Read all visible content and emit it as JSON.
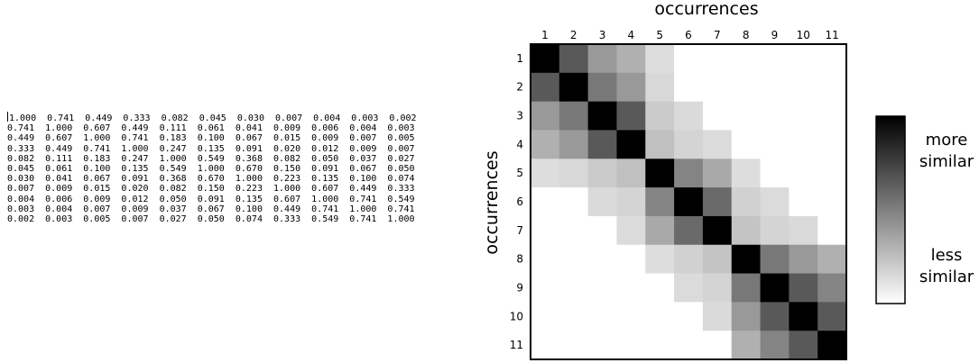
{
  "matrix_rows": [
    "1.000  0.741  0.449  0.333  0.082  0.045  0.030  0.007  0.004  0.003  0.002",
    "0.741  1.000  0.607  0.449  0.111  0.061  0.041  0.009  0.006  0.004  0.003",
    "0.449  0.607  1.000  0.741  0.183  0.100  0.067  0.015  0.009  0.007  0.005",
    "0.333  0.449  0.741  1.000  0.247  0.135  0.091  0.020  0.012  0.009  0.007",
    "0.082  0.111  0.183  0.247  1.000  0.549  0.368  0.082  0.050  0.037  0.027",
    "0.045  0.061  0.100  0.135  0.549  1.000  0.670  0.150  0.091  0.067  0.050",
    "0.030  0.041  0.067  0.091  0.368  0.670  1.000  0.223  0.135  0.100  0.074",
    "0.007  0.009  0.015  0.020  0.082  0.150  0.223  1.000  0.607  0.449  0.333",
    "0.004  0.006  0.009  0.012  0.050  0.091  0.135  0.607  1.000  0.741  0.549",
    "0.003  0.004  0.007  0.009  0.037  0.067  0.100  0.449  0.741  1.000  0.741",
    "0.002  0.003  0.005  0.007  0.027  0.050  0.074  0.333  0.549  0.741  1.000"
  ],
  "chart_data": {
    "type": "heatmap",
    "xlabel": "occurrences",
    "ylabel": "occurrences",
    "x_categories": [
      "1",
      "2",
      "3",
      "4",
      "5",
      "6",
      "7",
      "8",
      "9",
      "10",
      "11"
    ],
    "y_categories": [
      "1",
      "2",
      "3",
      "4",
      "5",
      "6",
      "7",
      "8",
      "9",
      "10",
      "11"
    ],
    "values": [
      [
        1.0,
        0.741,
        0.449,
        0.333,
        0.082,
        0.045,
        0.03,
        0.007,
        0.004,
        0.003,
        0.002
      ],
      [
        0.741,
        1.0,
        0.607,
        0.449,
        0.111,
        0.061,
        0.041,
        0.009,
        0.006,
        0.004,
        0.003
      ],
      [
        0.449,
        0.607,
        1.0,
        0.741,
        0.183,
        0.1,
        0.067,
        0.015,
        0.009,
        0.007,
        0.005
      ],
      [
        0.333,
        0.449,
        0.741,
        1.0,
        0.247,
        0.135,
        0.091,
        0.02,
        0.012,
        0.009,
        0.007
      ],
      [
        0.082,
        0.111,
        0.183,
        0.247,
        1.0,
        0.549,
        0.368,
        0.082,
        0.05,
        0.037,
        0.027
      ],
      [
        0.045,
        0.061,
        0.1,
        0.135,
        0.549,
        1.0,
        0.67,
        0.15,
        0.091,
        0.067,
        0.05
      ],
      [
        0.03,
        0.041,
        0.067,
        0.091,
        0.368,
        0.67,
        1.0,
        0.223,
        0.135,
        0.1,
        0.074
      ],
      [
        0.007,
        0.009,
        0.015,
        0.02,
        0.082,
        0.15,
        0.223,
        1.0,
        0.607,
        0.449,
        0.333
      ],
      [
        0.004,
        0.006,
        0.009,
        0.012,
        0.05,
        0.091,
        0.135,
        0.607,
        1.0,
        0.741,
        0.549
      ],
      [
        0.003,
        0.004,
        0.007,
        0.009,
        0.037,
        0.067,
        0.1,
        0.449,
        0.741,
        1.0,
        0.741
      ],
      [
        0.002,
        0.003,
        0.005,
        0.007,
        0.027,
        0.05,
        0.074,
        0.333,
        0.549,
        0.741,
        1.0
      ]
    ],
    "x_axis_position": "top",
    "colorbar": {
      "top_label": [
        "more",
        "similar"
      ],
      "bottom_label": [
        "less",
        "similar"
      ],
      "high_color": "#000000",
      "low_color": "#ffffff"
    },
    "grid": false
  }
}
